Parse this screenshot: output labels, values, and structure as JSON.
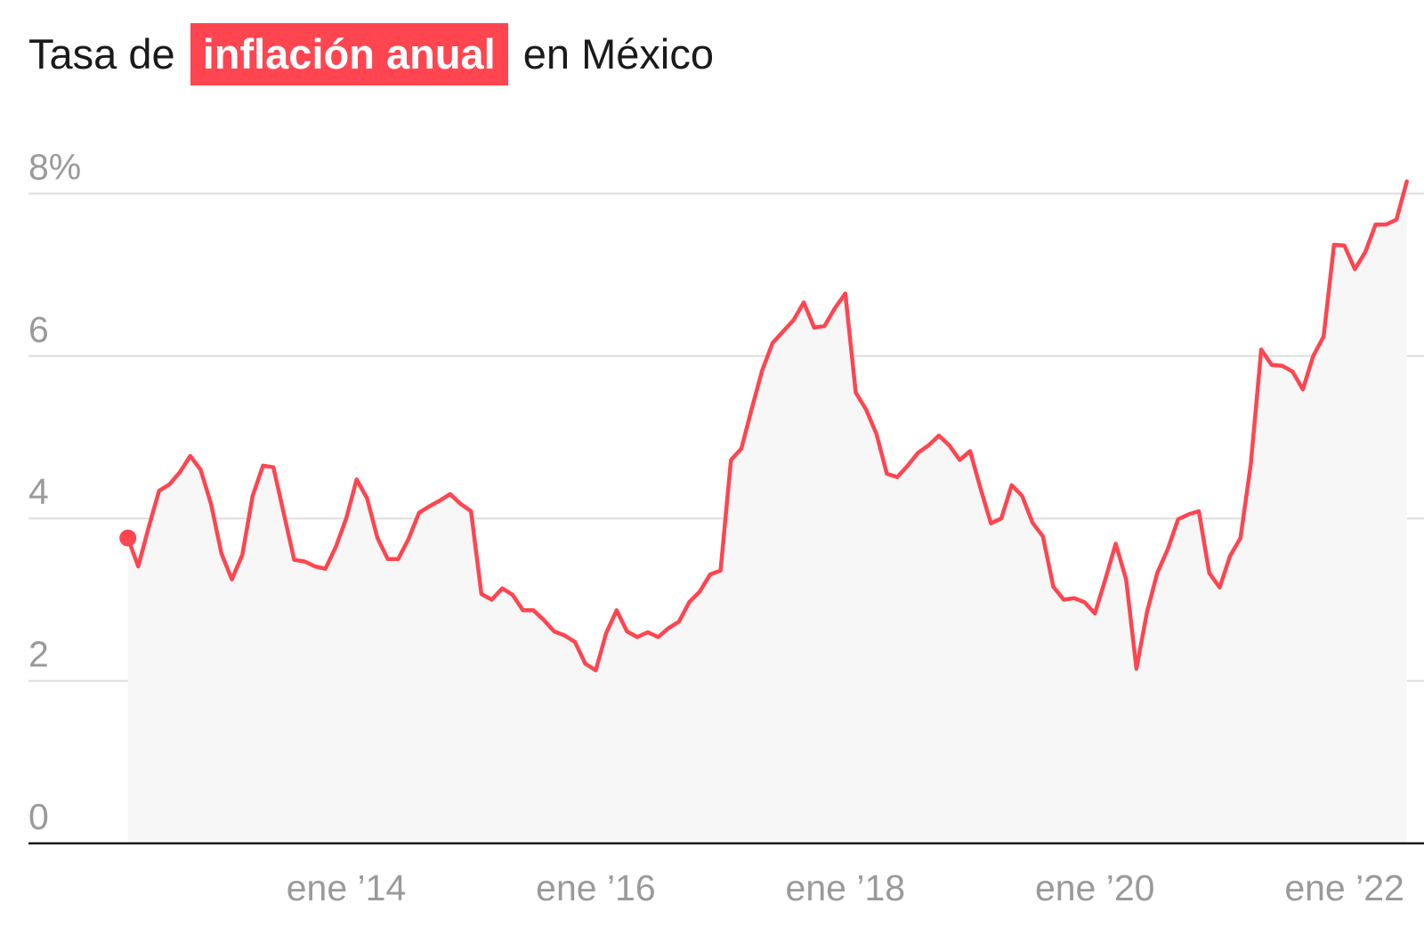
{
  "chart_data": {
    "type": "area",
    "title": {
      "prefix": "Tasa de",
      "highlight": "inflación anual",
      "suffix": "en México"
    },
    "y_ticks": [
      {
        "value": 0,
        "label": "0"
      },
      {
        "value": 2,
        "label": "2"
      },
      {
        "value": 4,
        "label": "4"
      },
      {
        "value": 6,
        "label": "6"
      },
      {
        "value": 8,
        "label": "8%"
      }
    ],
    "x_ticks": [
      {
        "date": 2014.0,
        "label": "ene ’14"
      },
      {
        "date": 2016.0,
        "label": "ene ’16"
      },
      {
        "date": 2018.0,
        "label": "ene ’18"
      },
      {
        "date": 2020.0,
        "label": "ene ’20"
      },
      {
        "date": 2022.0,
        "label": "ene ’22"
      }
    ],
    "ylim": [
      0,
      8.4
    ],
    "x_start": 2012.25,
    "x_step_months": 1,
    "series": [
      {
        "name": "Inflación anual (%)",
        "color": "#ff4550",
        "values": [
          3.76,
          3.41,
          3.89,
          4.34,
          4.42,
          4.57,
          4.77,
          4.6,
          4.18,
          3.57,
          3.25,
          3.55,
          4.28,
          4.65,
          4.63,
          4.06,
          3.49,
          3.47,
          3.41,
          3.38,
          3.65,
          4.0,
          4.48,
          4.25,
          3.76,
          3.5,
          3.5,
          3.75,
          4.07,
          4.15,
          4.22,
          4.3,
          4.18,
          4.09,
          3.07,
          3.0,
          3.14,
          3.06,
          2.87,
          2.87,
          2.75,
          2.61,
          2.56,
          2.48,
          2.21,
          2.13,
          2.59,
          2.87,
          2.61,
          2.54,
          2.6,
          2.54,
          2.65,
          2.73,
          2.97,
          3.1,
          3.31,
          3.36,
          4.72,
          4.86,
          5.35,
          5.82,
          6.16,
          6.3,
          6.44,
          6.66,
          6.35,
          6.37,
          6.59,
          6.77,
          5.55,
          5.34,
          5.04,
          4.55,
          4.51,
          4.65,
          4.81,
          4.9,
          5.02,
          4.9,
          4.72,
          4.83,
          4.37,
          3.94,
          4.0,
          4.41,
          4.28,
          3.95,
          3.78,
          3.16,
          3.0,
          3.02,
          2.97,
          2.83,
          3.25,
          3.69,
          3.25,
          2.15,
          2.84,
          3.33,
          3.62,
          3.99,
          4.05,
          4.09,
          3.33,
          3.15,
          3.54,
          3.76,
          4.67,
          6.08,
          5.89,
          5.88,
          5.81,
          5.59,
          6.0,
          6.24,
          7.37,
          7.36,
          7.07,
          7.28,
          7.62,
          7.62,
          7.68,
          8.15
        ]
      }
    ]
  }
}
